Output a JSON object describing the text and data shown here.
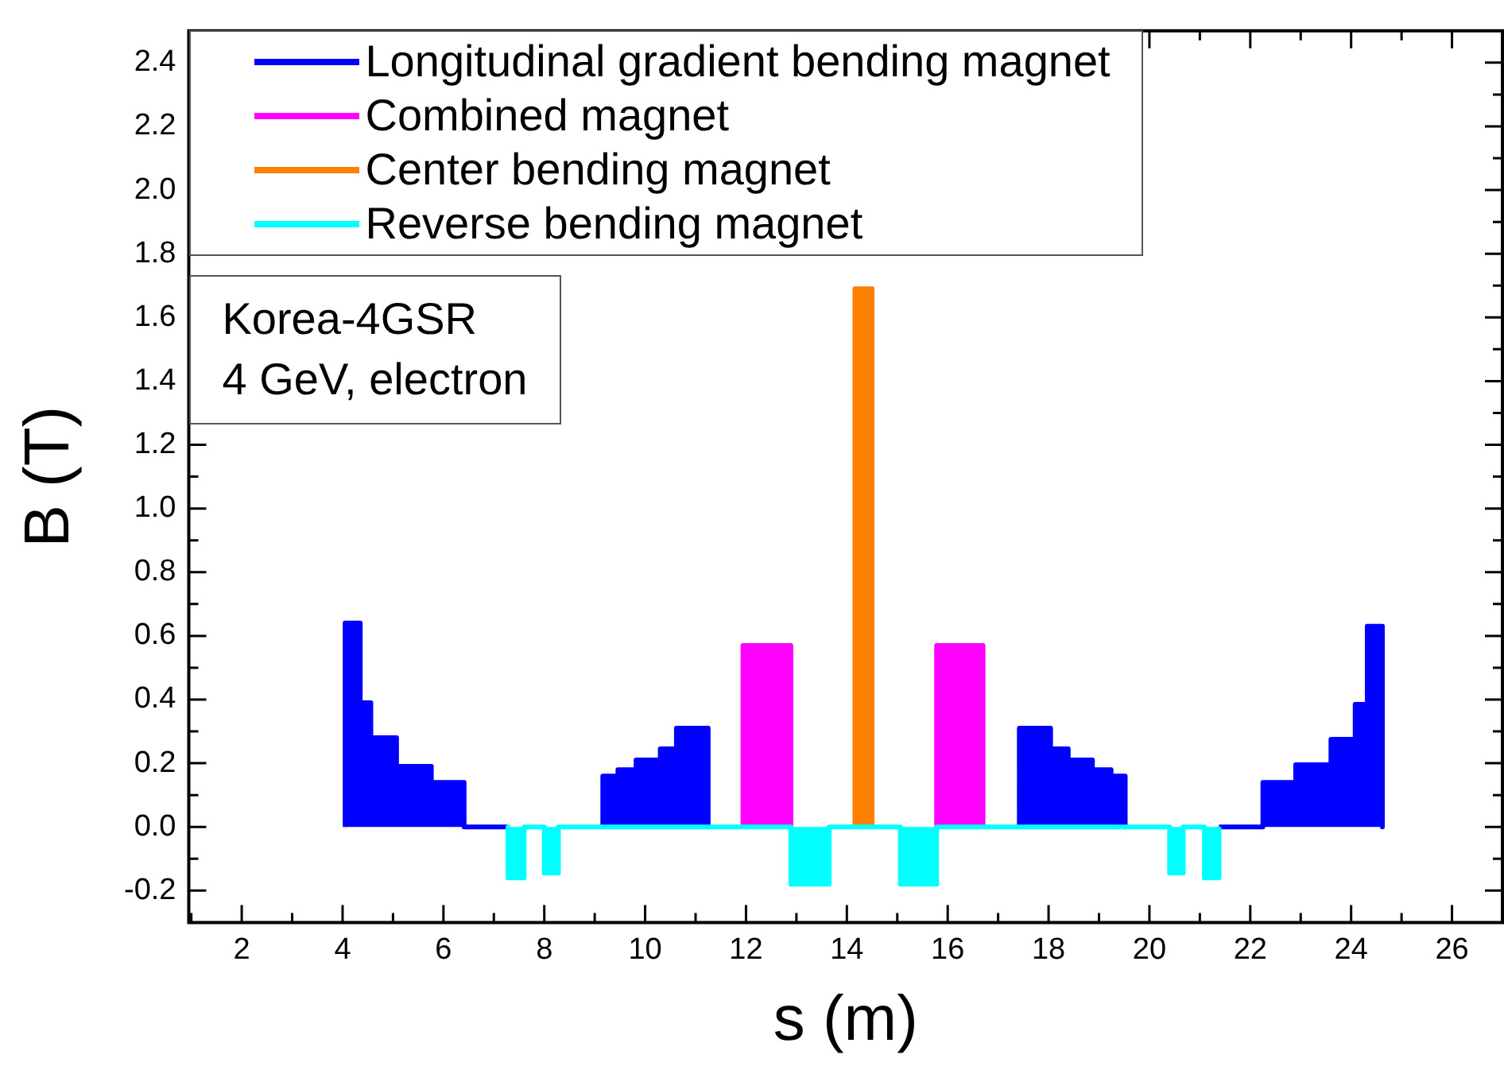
{
  "chart_data": {
    "type": "area",
    "xlabel": "s (m)",
    "ylabel": "B (T)",
    "annotations": [
      "Korea-4GSR",
      "4 GeV, electron"
    ],
    "legend": "top left",
    "grid": false,
    "xlim": [
      0.95,
      27
    ],
    "ylim": [
      -0.3,
      2.5
    ],
    "xticks": [
      {
        "value": 1,
        "label": null
      },
      {
        "value": 2,
        "label": "2"
      },
      {
        "value": 3,
        "label": null
      },
      {
        "value": 4,
        "label": "4"
      },
      {
        "value": 5,
        "label": null
      },
      {
        "value": 6,
        "label": "6"
      },
      {
        "value": 7,
        "label": null
      },
      {
        "value": 8,
        "label": "8"
      },
      {
        "value": 9,
        "label": null
      },
      {
        "value": 10,
        "label": "10"
      },
      {
        "value": 11,
        "label": null
      },
      {
        "value": 12,
        "label": "12"
      },
      {
        "value": 13,
        "label": null
      },
      {
        "value": 14,
        "label": "14"
      },
      {
        "value": 15,
        "label": null
      },
      {
        "value": 16,
        "label": "16"
      },
      {
        "value": 17,
        "label": null
      },
      {
        "value": 18,
        "label": "18"
      },
      {
        "value": 19,
        "label": null
      },
      {
        "value": 20,
        "label": "20"
      },
      {
        "value": 21,
        "label": null
      },
      {
        "value": 22,
        "label": "22"
      },
      {
        "value": 23,
        "label": null
      },
      {
        "value": 24,
        "label": "24"
      },
      {
        "value": 25,
        "label": null
      },
      {
        "value": 26,
        "label": "26"
      }
    ],
    "yticks": [
      {
        "value": -0.3,
        "label": null
      },
      {
        "value": -0.2,
        "label": "-0.2"
      },
      {
        "value": -0.1,
        "label": null
      },
      {
        "value": 0,
        "label": "0.0"
      },
      {
        "value": 0.1,
        "label": null
      },
      {
        "value": 0.2,
        "label": "0.2"
      },
      {
        "value": 0.3,
        "label": null
      },
      {
        "value": 0.4,
        "label": "0.4"
      },
      {
        "value": 0.5,
        "label": null
      },
      {
        "value": 0.6,
        "label": "0.6"
      },
      {
        "value": 0.7,
        "label": null
      },
      {
        "value": 0.8,
        "label": "0.8"
      },
      {
        "value": 0.9,
        "label": null
      },
      {
        "value": 1.0,
        "label": "1.0"
      },
      {
        "value": 1.1,
        "label": null
      },
      {
        "value": 1.2,
        "label": "1.2"
      },
      {
        "value": 1.3,
        "label": null
      },
      {
        "value": 1.4,
        "label": "1.4"
      },
      {
        "value": 1.5,
        "label": null
      },
      {
        "value": 1.6,
        "label": "1.6"
      },
      {
        "value": 1.7,
        "label": null
      },
      {
        "value": 1.8,
        "label": "1.8"
      },
      {
        "value": 1.9,
        "label": null
      },
      {
        "value": 2.0,
        "label": "2.0"
      },
      {
        "value": 2.1,
        "label": null
      },
      {
        "value": 2.2,
        "label": "2.2"
      },
      {
        "value": 2.3,
        "label": null
      },
      {
        "value": 2.4,
        "label": "2.4"
      }
    ],
    "series": [
      {
        "name": "Longitudinal gradient bending magnet",
        "color": "#0000ff",
        "x": [
          4.05,
          4.05,
          4.35,
          4.35,
          4.56,
          4.56,
          5.07,
          5.07,
          5.76,
          5.76,
          6.41,
          6.41,
          7.28,
          8.5,
          9.16,
          9.16,
          9.46,
          9.46,
          9.82,
          9.82,
          10.3,
          10.3,
          10.62,
          10.62,
          11.25,
          11.25,
          14.33,
          17.42,
          17.42,
          18.04,
          18.04,
          18.39,
          18.39,
          18.87,
          18.87,
          19.24,
          19.24,
          19.52,
          19.52,
          20.5,
          21.38,
          22.25,
          22.25,
          22.9,
          22.9,
          23.6,
          23.6,
          24.08,
          24.08,
          24.32,
          24.32,
          24.62,
          24.62
        ],
        "values": [
          0,
          0.64,
          0.64,
          0.39,
          0.39,
          0.28,
          0.28,
          0.19,
          0.19,
          0.14,
          0.14,
          0,
          0,
          null,
          0,
          0.16,
          0.16,
          0.18,
          0.18,
          0.21,
          0.21,
          0.245,
          0.245,
          0.31,
          0.31,
          0,
          null,
          0,
          0.31,
          0.31,
          0.245,
          0.245,
          0.21,
          0.21,
          0.18,
          0.18,
          0.16,
          0.16,
          0,
          null,
          0,
          0,
          0.14,
          0.14,
          0.195,
          0.195,
          0.275,
          0.275,
          0.385,
          0.385,
          0.63,
          0.63,
          0
        ]
      },
      {
        "name": "Combined magnet",
        "color": "#ff00ff",
        "x": [
          11.94,
          11.94,
          12.89,
          12.89,
          14.33,
          15.78,
          15.78,
          16.7,
          16.7
        ],
        "values": [
          0,
          0.57,
          0.57,
          0,
          null,
          0,
          0.57,
          0.57,
          0
        ]
      },
      {
        "name": "Center bending magnet",
        "color": "#ff8000",
        "x": [
          14.16,
          14.16,
          14.5,
          14.5
        ],
        "values": [
          0,
          1.69,
          1.69,
          0
        ]
      },
      {
        "name": "Reverse bending magnet",
        "color": "#00ffff",
        "x": [
          7.28,
          7.28,
          7.6,
          7.6,
          8.0,
          8.0,
          8.28,
          8.28,
          12.89,
          12.89,
          13.65,
          13.65,
          15.06,
          15.06,
          15.78,
          15.78,
          20.4,
          20.4,
          20.67,
          20.67,
          21.09,
          21.09,
          21.38,
          21.38
        ],
        "values": [
          0,
          -0.16,
          -0.16,
          0,
          0,
          -0.145,
          -0.145,
          0,
          0,
          -0.18,
          -0.18,
          0,
          0,
          -0.18,
          -0.18,
          0,
          0,
          -0.145,
          -0.145,
          0,
          0,
          -0.16,
          -0.16,
          0
        ]
      }
    ]
  }
}
